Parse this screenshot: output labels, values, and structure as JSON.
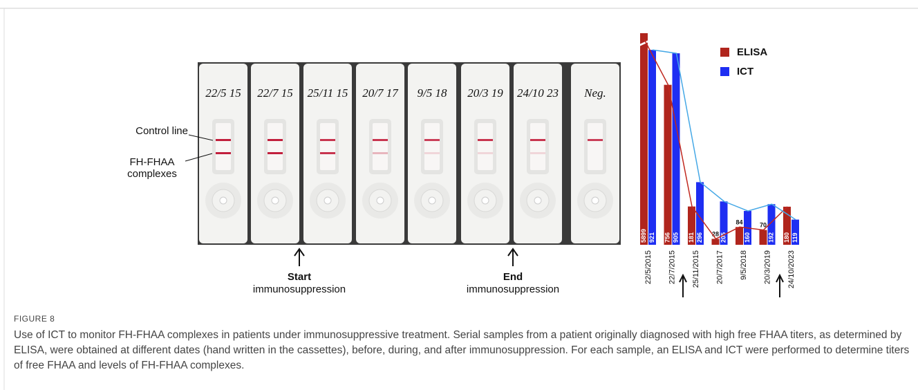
{
  "figure": {
    "label": "FIGURE 8",
    "caption": "Use of ICT to monitor FH-FHAA complexes in patients under immunosuppressive treatment. Serial samples from a patient originally diagnosed with high free FHAA titers, as determined by ELISA, were obtained at different dates (hand written in the cassettes), before, during, and after immunosuppression. For each sample, an ELISA and ICT were performed to determine titers of free FHAA and levels of FH-FHAA complexes."
  },
  "cassettes": {
    "dates": [
      "22/5 15",
      "22/7 15",
      "25/11 15",
      "20/7 17",
      "9/5 18",
      "20/3 19",
      "24/10 23",
      "Neg."
    ],
    "control_line": "Control line",
    "complex_label": "FH-FHAA complexes",
    "start": {
      "title": "Start",
      "sub": "immunosuppression"
    },
    "end": {
      "title": "End",
      "sub": "immunosuppression"
    }
  },
  "chart_data": {
    "type": "bar",
    "categories": [
      "22/5/2015",
      "22/7/2015",
      "25/11/2015",
      "20/7/2017",
      "9/5/2018",
      "20/3/2019",
      "24/10/2023"
    ],
    "series": [
      {
        "name": "ELISA",
        "color": "#b0251d",
        "line_color": "#c0281f",
        "values": [
          5899,
          756,
          181,
          28,
          84,
          70,
          180
        ]
      },
      {
        "name": "ICT",
        "color": "#1e2ef2",
        "line_color": "#45a8e6",
        "values": [
          921,
          905,
          296,
          205,
          160,
          192,
          119
        ]
      }
    ]
  }
}
